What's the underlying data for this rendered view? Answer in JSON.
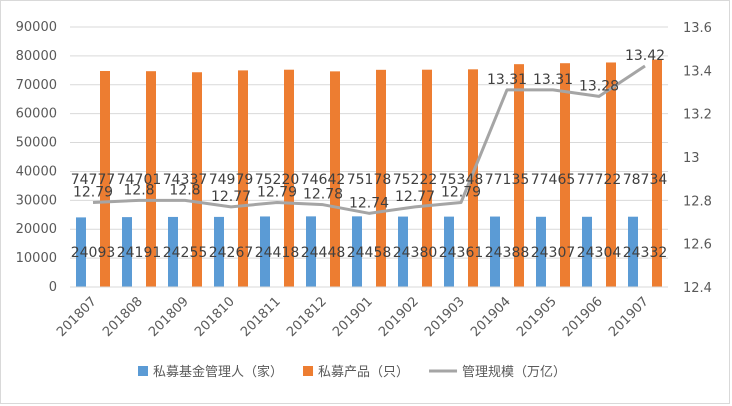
{
  "chart_data": {
    "type": "bar",
    "categories": [
      "201807",
      "201808",
      "201809",
      "201810",
      "201811",
      "201812",
      "201901",
      "201902",
      "201903",
      "201904",
      "201905",
      "201906",
      "201907"
    ],
    "series": [
      {
        "name": "私募基金管理人（家）",
        "kind": "bar",
        "axis": "left",
        "color": "#5B9BD5",
        "values": [
          24093,
          24191,
          24255,
          24267,
          24418,
          24448,
          24458,
          24380,
          24361,
          24388,
          24307,
          24304,
          24332
        ]
      },
      {
        "name": "私募产品（只）",
        "kind": "bar",
        "axis": "left",
        "color": "#ED7D31",
        "values": [
          74777,
          74701,
          74337,
          74979,
          75220,
          74642,
          75178,
          75222,
          75348,
          77135,
          77465,
          77722,
          78734
        ]
      },
      {
        "name": "管理规模（万亿）",
        "kind": "line",
        "axis": "right",
        "color": "#A5A5A5",
        "values": [
          12.79,
          12.8,
          12.8,
          12.77,
          12.79,
          12.78,
          12.74,
          12.77,
          12.79,
          13.31,
          13.31,
          13.28,
          13.42
        ]
      }
    ],
    "data_labels": {
      "bar_left": [
        "24093",
        "24191",
        "24255",
        "24267",
        "24418",
        "24448",
        "24458",
        "24380",
        "24361",
        "24388",
        "24307",
        "24304",
        "24332"
      ],
      "bar_right": [
        "74777",
        "74701",
        "74337",
        "74979",
        "75220",
        "74642",
        "75178",
        "75222",
        "75348",
        "77135",
        "77465",
        "77722",
        "78734"
      ],
      "line": [
        "12.79",
        "12.8",
        "12.8",
        "12.77",
        "12.79",
        "12.78",
        "12.74",
        "12.77",
        "12.79",
        "13.31",
        "13.31",
        "13.28",
        "13.42"
      ]
    },
    "ylim_left": [
      0,
      90000
    ],
    "yticks_left": [
      "0",
      "10000",
      "20000",
      "30000",
      "40000",
      "50000",
      "60000",
      "70000",
      "80000",
      "90000"
    ],
    "ylim_right": [
      12.4,
      13.6
    ],
    "yticks_right": [
      "12.4",
      "12.6",
      "12.8",
      "13",
      "13.2",
      "13.4",
      "13.6"
    ],
    "grid": true,
    "legend_position": "bottom"
  }
}
